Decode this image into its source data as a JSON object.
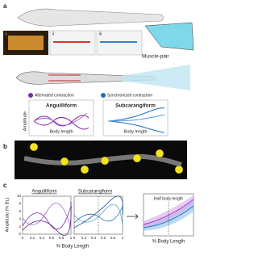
{
  "panel_a": {
    "label": "a",
    "insets": [
      "i",
      "ii",
      "iii"
    ],
    "muscle_label": "Muscle-pair",
    "left_legend": "Alternated contraction",
    "right_legend": "Synchronized contraction",
    "left_plot": {
      "title": "Anguilliform",
      "y_label": "Amplitude",
      "x_label": "Body length"
    },
    "right_plot": {
      "title": "Subcarangiform",
      "x_label": "Body length"
    }
  },
  "panel_b": {
    "label": "b"
  },
  "panel_c": {
    "label": "c",
    "left_title": "Anguilliform",
    "right_title": "Subcarangiform",
    "y_label": "Amplitude (% BL)",
    "yticks": [
      "0",
      "2",
      "4",
      "6",
      "8",
      "10"
    ],
    "xticks_left": [
      "0",
      "0.2",
      "0.4",
      "0.6",
      "0.8",
      "1"
    ],
    "xticks_right": [
      "0",
      "0.2",
      "0.4",
      "0.6",
      "0.8",
      "1"
    ],
    "x_label": "% Body Length",
    "summary_annotation": "Half body length",
    "summary_x_label": "% Body Length"
  }
}
